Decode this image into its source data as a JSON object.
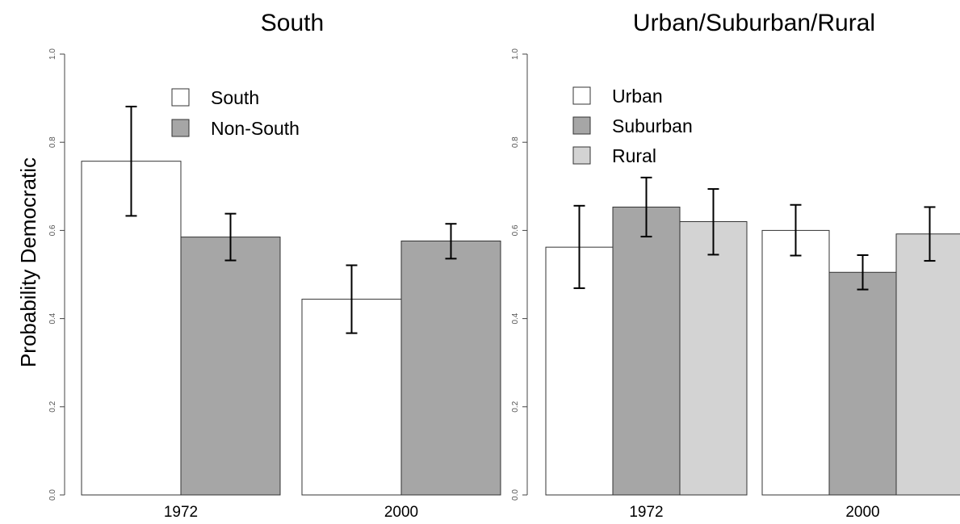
{
  "y_axis_label": "Probability Democratic",
  "chart_data": [
    {
      "type": "bar",
      "title": "South",
      "ylabel": "Probability Democratic",
      "ylim": [
        0,
        1
      ],
      "yticks": [
        "0.0",
        "0.2",
        "0.4",
        "0.6",
        "0.8",
        "1.0"
      ],
      "categories": [
        "1972",
        "2000"
      ],
      "legend_position": "top-center",
      "series": [
        {
          "name": "South",
          "color": "#ffffff",
          "values": [
            0.757,
            0.444
          ],
          "lower": [
            0.633,
            0.367
          ],
          "upper": [
            0.881,
            0.521
          ]
        },
        {
          "name": "Non-South",
          "color": "#a6a6a6",
          "values": [
            0.585,
            0.576
          ],
          "lower": [
            0.532,
            0.536
          ],
          "upper": [
            0.638,
            0.615
          ]
        }
      ]
    },
    {
      "type": "bar",
      "title": "Urban/Suburban/Rural",
      "ylim": [
        0,
        1
      ],
      "yticks": [
        "0.0",
        "0.2",
        "0.4",
        "0.6",
        "0.8",
        "1.0"
      ],
      "categories": [
        "1972",
        "2000"
      ],
      "legend_position": "top-left",
      "series": [
        {
          "name": "Urban",
          "color": "#ffffff",
          "values": [
            0.562,
            0.6
          ],
          "lower": [
            0.469,
            0.543
          ],
          "upper": [
            0.656,
            0.658
          ]
        },
        {
          "name": "Suburban",
          "color": "#a6a6a6",
          "values": [
            0.653,
            0.505
          ],
          "lower": [
            0.586,
            0.466
          ],
          "upper": [
            0.72,
            0.544
          ]
        },
        {
          "name": "Rural",
          "color": "#d3d3d3",
          "values": [
            0.62,
            0.592
          ],
          "lower": [
            0.545,
            0.531
          ],
          "upper": [
            0.694,
            0.653
          ]
        }
      ]
    }
  ]
}
